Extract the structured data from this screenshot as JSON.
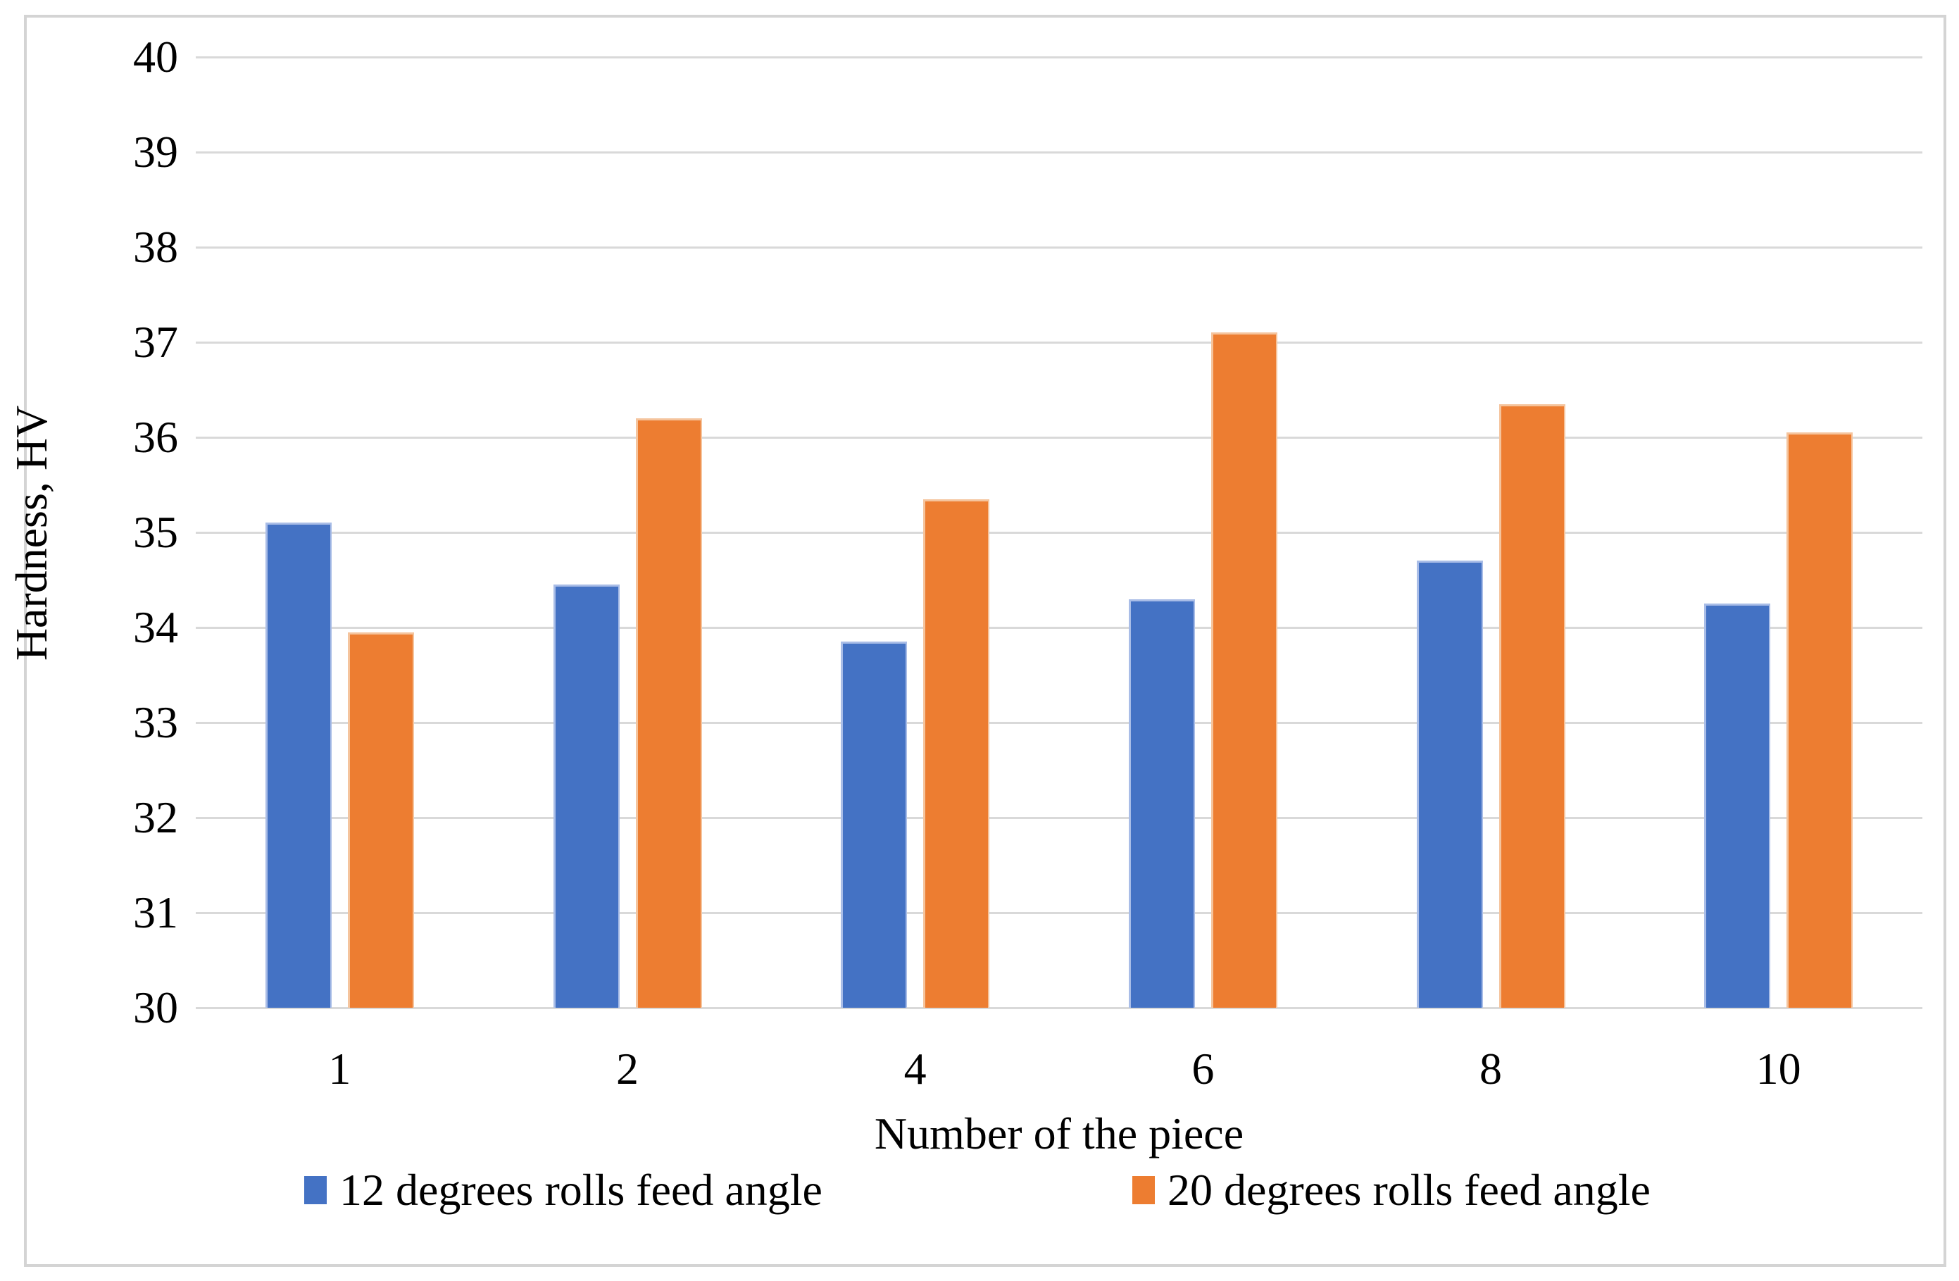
{
  "figure": {
    "background_color": "#ffffff",
    "border_color": "#d4d4d4",
    "text_color": "#000000"
  },
  "chart_data": {
    "type": "bar",
    "title": "",
    "categories": [
      "1",
      "2",
      "4",
      "6",
      "8",
      "10"
    ],
    "series": [
      {
        "name": "12 degrees rolls feed angle",
        "color": "#4472C4",
        "edge_color": "#a9bde7",
        "values": [
          35.1,
          34.45,
          33.85,
          34.3,
          34.7,
          34.25
        ]
      },
      {
        "name": "20 degrees rolls feed angle",
        "color": "#ED7D31",
        "edge_color": "#f5c49d",
        "values": [
          33.95,
          36.2,
          35.35,
          37.1,
          36.35,
          36.05
        ]
      }
    ],
    "xlabel": "Number of the piece",
    "ylabel": "Hardness, HV",
    "ylim": [
      30,
      40
    ],
    "ytick_step": 1,
    "yticks": [
      "30",
      "31",
      "32",
      "33",
      "34",
      "35",
      "36",
      "37",
      "38",
      "39",
      "40"
    ],
    "grid": "horizontal gridlines on",
    "gridline_color": "#d9d9d9",
    "legend_position": "bottom"
  }
}
